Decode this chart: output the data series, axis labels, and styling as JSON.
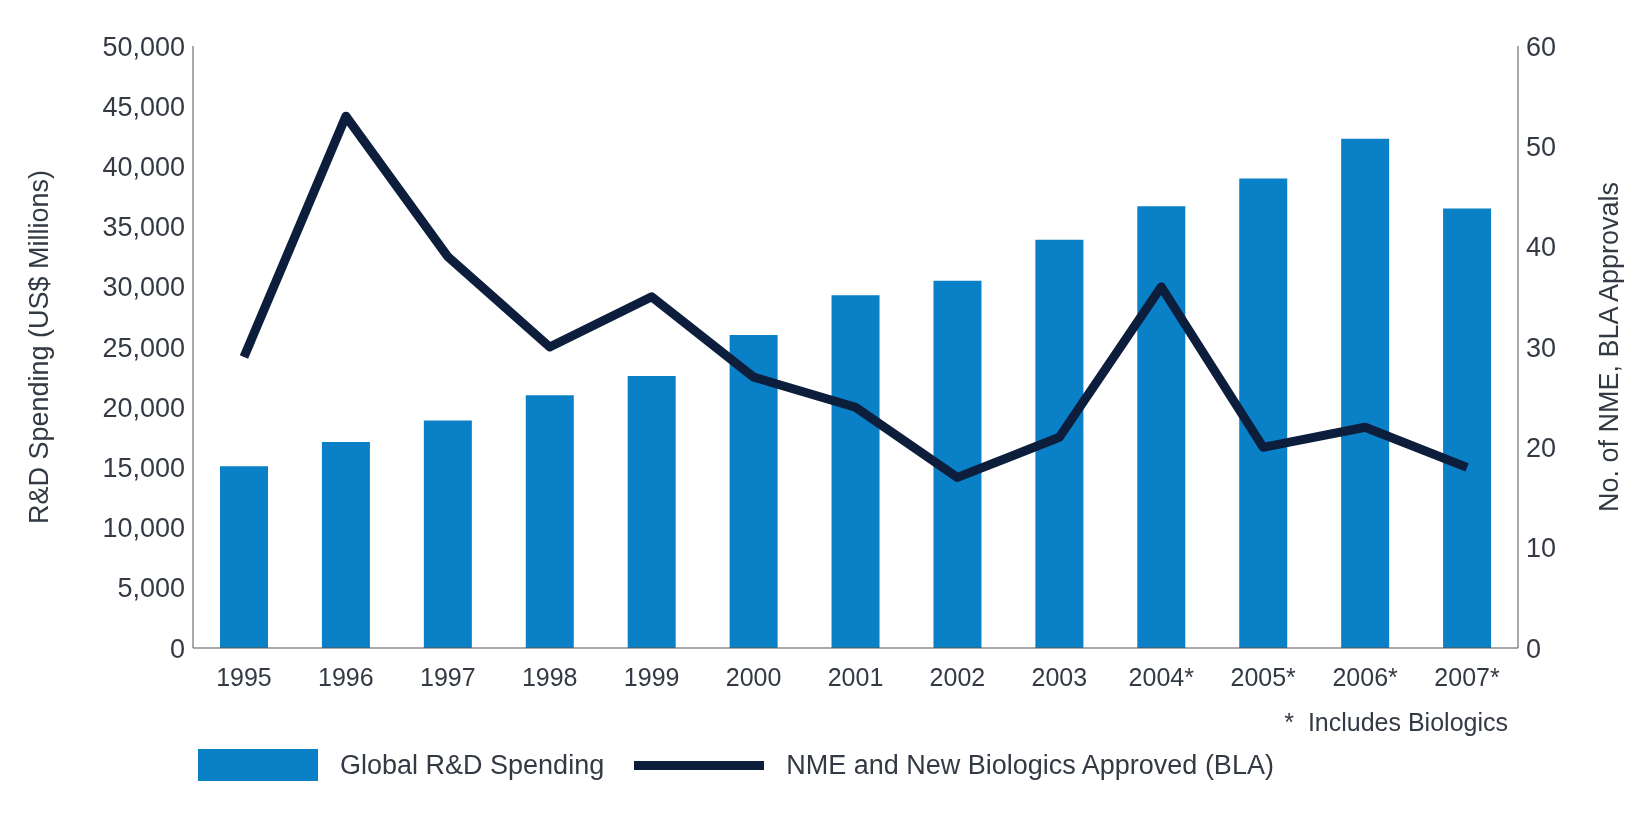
{
  "chart_data": {
    "type": "bar",
    "ylabel": "R&D Spending (US$ Millions)",
    "y2label": "No. of NME, BLA Approvals",
    "categories": [
      "1995",
      "1996",
      "1997",
      "1998",
      "1999",
      "2000",
      "2001",
      "2002",
      "2003",
      "2004*",
      "2005*",
      "2006*",
      "2007*"
    ],
    "series": [
      {
        "name": "Global R&D Spending",
        "color": "#0a80c6",
        "values": [
          15100,
          17100,
          18900,
          21000,
          22600,
          26000,
          29300,
          30500,
          33900,
          36700,
          39000,
          42300,
          36500
        ]
      },
      {
        "name": "NME and New Biologics Approved (BLA)",
        "type": "line",
        "axis": "y2",
        "color": "#0c1e3c",
        "values": [
          29,
          53,
          39,
          30,
          35,
          27,
          24,
          17,
          21,
          36,
          20,
          22,
          18
        ]
      }
    ],
    "ylim": [
      0,
      50000
    ],
    "yticks": [
      {
        "value": 0,
        "label": "0"
      },
      {
        "value": 5000,
        "label": "5,000"
      },
      {
        "value": 10000,
        "label": "10,000"
      },
      {
        "value": 15000,
        "label": "15,000"
      },
      {
        "value": 20000,
        "label": "20,000"
      },
      {
        "value": 25000,
        "label": "25,000"
      },
      {
        "value": 30000,
        "label": "30,000"
      },
      {
        "value": 35000,
        "label": "35,000"
      },
      {
        "value": 40000,
        "label": "40,000"
      },
      {
        "value": 45000,
        "label": "45,000"
      },
      {
        "value": 50000,
        "label": "50,000"
      }
    ],
    "y2lim": [
      0,
      60
    ],
    "y2ticks": [
      0,
      10,
      20,
      30,
      40,
      50,
      60
    ],
    "annotations": [
      "*  Includes Biologics"
    ],
    "grid": false,
    "legend": "bottom",
    "marker": "none"
  }
}
